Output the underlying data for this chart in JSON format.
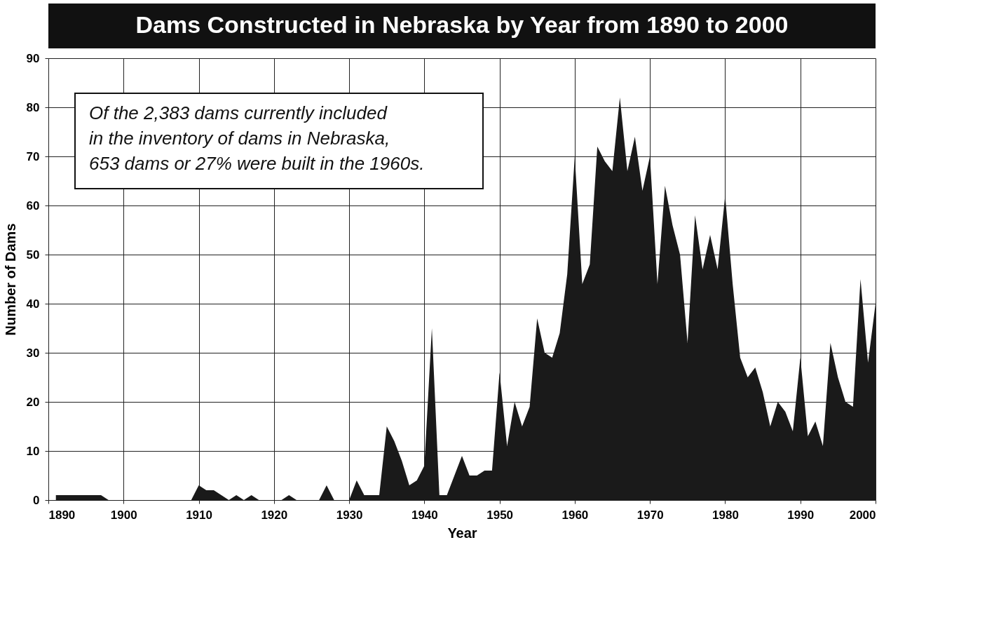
{
  "chart_data": {
    "type": "area",
    "title": "Dams Constructed in Nebraska by Year from 1890 to 2000",
    "xlabel": "Year",
    "ylabel": "Number of Dams",
    "annotations": [
      "Of the 2,383 dams currently included\nin the inventory of dams in Nebraska,\n653 dams or 27% were built in the 1960s."
    ],
    "x": [
      1891,
      1892,
      1893,
      1894,
      1895,
      1896,
      1897,
      1898,
      1899,
      1900,
      1901,
      1902,
      1903,
      1904,
      1905,
      1906,
      1907,
      1908,
      1909,
      1910,
      1911,
      1912,
      1913,
      1914,
      1915,
      1916,
      1917,
      1918,
      1919,
      1920,
      1921,
      1922,
      1923,
      1924,
      1925,
      1926,
      1927,
      1928,
      1929,
      1930,
      1931,
      1932,
      1933,
      1934,
      1935,
      1936,
      1937,
      1938,
      1939,
      1940,
      1941,
      1942,
      1943,
      1944,
      1945,
      1946,
      1947,
      1948,
      1949,
      1950,
      1951,
      1952,
      1953,
      1954,
      1955,
      1956,
      1957,
      1958,
      1959,
      1960,
      1961,
      1962,
      1963,
      1964,
      1965,
      1966,
      1967,
      1968,
      1969,
      1970,
      1971,
      1972,
      1973,
      1974,
      1975,
      1976,
      1977,
      1978,
      1979,
      1980,
      1981,
      1982,
      1983,
      1984,
      1985,
      1986,
      1987,
      1988,
      1989,
      1990,
      1991,
      1992,
      1993,
      1994,
      1995,
      1996,
      1997,
      1998,
      1999,
      2000
    ],
    "series": [
      {
        "color": "#1a1a1a",
        "values": [
          1,
          1,
          1,
          1,
          1,
          1,
          1,
          0,
          0,
          0,
          0,
          0,
          0,
          0,
          0,
          0,
          0,
          0,
          0,
          3,
          2,
          2,
          1,
          0,
          1,
          0,
          1,
          0,
          0,
          0,
          0,
          1,
          0,
          0,
          0,
          0,
          3,
          0,
          0,
          0,
          4,
          1,
          1,
          1,
          15,
          12,
          8,
          3,
          4,
          7,
          35,
          1,
          1,
          5,
          9,
          5,
          5,
          6,
          6,
          26,
          11,
          20,
          15,
          19,
          37,
          30,
          29,
          34,
          46,
          70,
          44,
          48,
          72,
          69,
          67,
          82,
          67,
          74,
          63,
          70,
          44,
          64,
          56,
          50,
          32,
          58,
          47,
          54,
          47,
          62,
          44,
          29,
          25,
          27,
          22,
          15,
          20,
          18,
          14,
          29,
          13,
          16,
          11,
          32,
          25,
          20,
          19,
          45,
          28,
          40
        ]
      }
    ],
    "xlim": [
      1890,
      2000
    ],
    "xticks": [
      1890,
      1900,
      1910,
      1920,
      1930,
      1940,
      1950,
      1960,
      1970,
      1980,
      1990,
      2000
    ],
    "ylim": [
      0,
      90
    ],
    "yticks": [
      0,
      10,
      20,
      30,
      40,
      50,
      60,
      70,
      80,
      90
    ],
    "grid": true,
    "legend": false
  }
}
